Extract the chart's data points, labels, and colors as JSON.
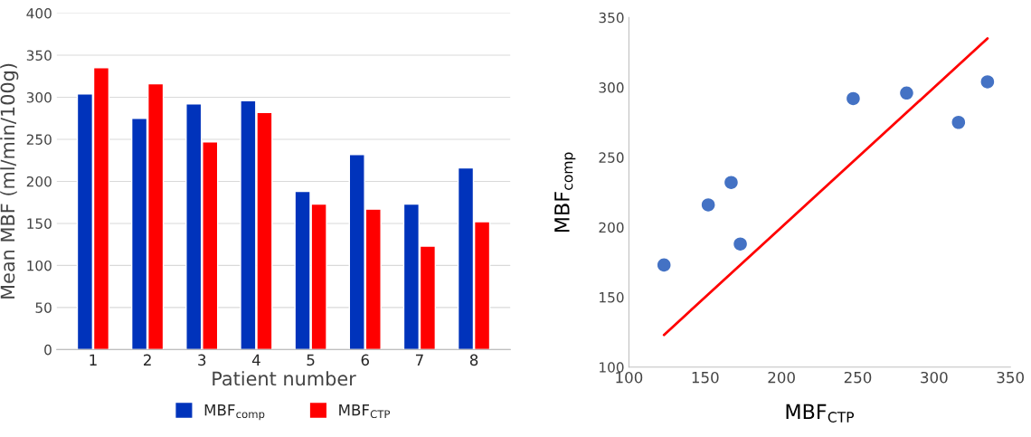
{
  "chart_data": [
    {
      "type": "bar",
      "categories": [
        "1",
        "2",
        "3",
        "4",
        "5",
        "6",
        "7",
        "8"
      ],
      "xlabel": "Patient number",
      "ylabel": "Mean MBF (ml/min/100g)",
      "ylim": [
        0,
        400
      ],
      "yticks": [
        0,
        50,
        100,
        150,
        200,
        250,
        300,
        350,
        400
      ],
      "grid": "y",
      "legend": "bottom",
      "series": [
        {
          "name": "MBF$_{comp}$",
          "color": "#0033bb",
          "values": [
            304,
            275,
            292,
            296,
            188,
            232,
            173,
            216
          ]
        },
        {
          "name": "MBF$_{CTP}$",
          "color": "#ff0000",
          "values": [
            335,
            316,
            247,
            282,
            173,
            167,
            123,
            152
          ]
        }
      ]
    },
    {
      "type": "scatter",
      "xlabel": "MBF$_{CTP}$",
      "ylabel": "MBF$_{comp}$",
      "xlim": [
        100,
        350
      ],
      "xticks": [
        100,
        150,
        200,
        250,
        300,
        350
      ],
      "ylim": [
        100,
        350
      ],
      "yticks": [
        100,
        150,
        200,
        250,
        300,
        350
      ],
      "grid": false,
      "series": [
        {
          "type": "scatter",
          "marker": "circle",
          "color": "#4472c4",
          "x": [
            123,
            152,
            167,
            173,
            247,
            282,
            316,
            335
          ],
          "values": [
            173,
            216,
            232,
            188,
            292,
            296,
            275,
            304
          ]
        },
        {
          "type": "line",
          "color": "#ff0000",
          "x": [
            123,
            335
          ],
          "values": [
            123,
            335
          ]
        }
      ]
    }
  ]
}
